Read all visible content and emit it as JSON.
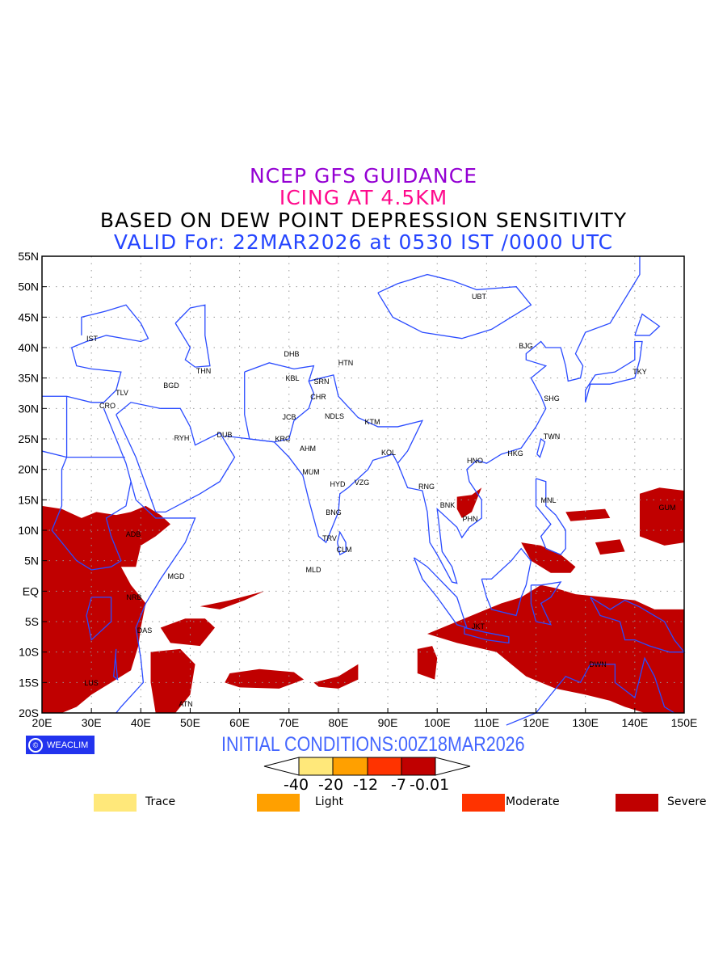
{
  "titles": {
    "line1": "NCEP GFS GUIDANCE",
    "line2": "ICING AT 4.5KM",
    "line3": "BASED ON DEW POINT DEPRESSION SENSITIVITY",
    "line4": "VALID For: 22MAR2026 at 0530 IST /0000 UTC"
  },
  "map": {
    "lon_ticks": [
      "20E",
      "30E",
      "40E",
      "50E",
      "60E",
      "70E",
      "80E",
      "90E",
      "100E",
      "110E",
      "120E",
      "130E",
      "140E",
      "150E"
    ],
    "lat_ticks": [
      "55N",
      "50N",
      "45N",
      "40N",
      "35N",
      "30N",
      "25N",
      "20N",
      "15N",
      "10N",
      "5N",
      "EQ",
      "5S",
      "10S",
      "15S",
      "20S"
    ],
    "cities": [
      "IST",
      "TLV",
      "CRO",
      "BGD",
      "THN",
      "RYH",
      "DUB",
      "DHB",
      "KBL",
      "SRN",
      "CHR",
      "JCB",
      "NDLS",
      "KTM",
      "KRC",
      "AHM",
      "MUM",
      "KOL",
      "HTN",
      "HYD",
      "VZG",
      "BNG",
      "TRV",
      "CLM",
      "MLD",
      "MGD",
      "ADB",
      "NRB",
      "DAS",
      "LUS",
      "ATN",
      "UBT",
      "BJG",
      "TKY",
      "SHG",
      "TWN",
      "HKG",
      "HNO",
      "RNG",
      "BNK",
      "PHN",
      "MNL",
      "GUM",
      "JKT",
      "DWN"
    ],
    "coast_color": "#2a4bff",
    "icing_color": "#c00000"
  },
  "footer": {
    "logo": "WEACLIM",
    "logo_icon": "copyright-icon",
    "initial": "INITIAL CONDITIONS:00Z18MAR2026"
  },
  "colorbar": {
    "labels": [
      "-40",
      "-20",
      "-12",
      "-7",
      "-0.01"
    ],
    "colors": [
      "#ffe87a",
      "#ffa000",
      "#ff3300",
      "#c00000"
    ]
  },
  "legend": [
    {
      "label": "Trace",
      "color": "#ffe87a"
    },
    {
      "label": "Light",
      "color": "#ffa000"
    },
    {
      "label": "Moderate",
      "color": "#ff3300"
    },
    {
      "label": "Severe",
      "color": "#c00000"
    }
  ]
}
